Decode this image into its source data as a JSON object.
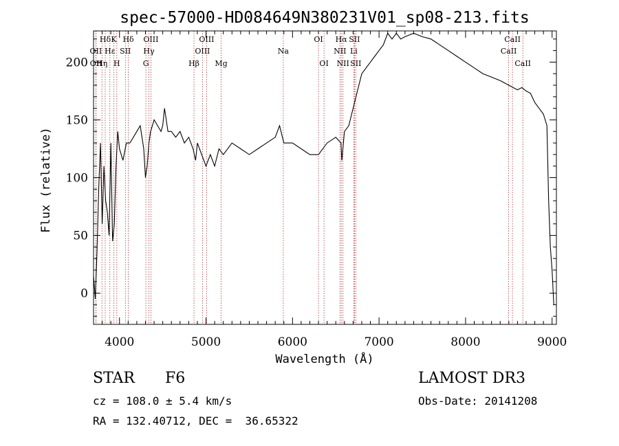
{
  "chart_data": {
    "type": "line",
    "title": "spec-57000-HD084649N380231V01_sp08-213.fits",
    "xlabel": "Wavelength (Å)",
    "ylabel": "Flux (relative)",
    "xlim": [
      3700,
      9050
    ],
    "ylim": [
      -27,
      227
    ],
    "xticks": [
      4000,
      5000,
      6000,
      7000,
      8000,
      9000
    ],
    "yticks": [
      0,
      50,
      100,
      150,
      200
    ],
    "series": [
      {
        "name": "flux",
        "x": [
          3700,
          3720,
          3740,
          3760,
          3780,
          3800,
          3820,
          3840,
          3860,
          3880,
          3900,
          3920,
          3940,
          3960,
          3980,
          4000,
          4040,
          4080,
          4120,
          4160,
          4200,
          4240,
          4280,
          4300,
          4320,
          4340,
          4360,
          4400,
          4440,
          4480,
          4500,
          4520,
          4560,
          4600,
          4650,
          4700,
          4750,
          4800,
          4850,
          4880,
          4900,
          4950,
          5000,
          5050,
          5100,
          5150,
          5200,
          5300,
          5400,
          5500,
          5600,
          5700,
          5800,
          5850,
          5900,
          6000,
          6100,
          6200,
          6300,
          6400,
          6500,
          6560,
          6570,
          6600,
          6650,
          6700,
          6750,
          6800,
          6850,
          6900,
          6950,
          7000,
          7050,
          7100,
          7150,
          7200,
          7250,
          7300,
          7400,
          7500,
          7600,
          7700,
          7800,
          7900,
          8000,
          8100,
          8200,
          8300,
          8400,
          8500,
          8550,
          8600,
          8650,
          8700,
          8750,
          8800,
          8850,
          8900,
          8920,
          8940,
          8960,
          8980,
          9000,
          9020
        ],
        "y": [
          15,
          -5,
          35,
          90,
          130,
          60,
          110,
          80,
          70,
          50,
          130,
          45,
          60,
          110,
          140,
          125,
          115,
          130,
          130,
          135,
          140,
          145,
          125,
          100,
          110,
          130,
          140,
          150,
          145,
          140,
          145,
          160,
          140,
          140,
          135,
          140,
          130,
          135,
          125,
          115,
          130,
          120,
          110,
          120,
          110,
          125,
          120,
          130,
          125,
          120,
          125,
          130,
          135,
          145,
          130,
          130,
          125,
          120,
          120,
          130,
          135,
          130,
          115,
          140,
          145,
          160,
          175,
          190,
          195,
          200,
          205,
          210,
          215,
          225,
          220,
          225,
          220,
          222,
          225,
          222,
          220,
          215,
          210,
          205,
          200,
          195,
          190,
          187,
          184,
          180,
          178,
          176,
          178,
          175,
          173,
          165,
          160,
          155,
          150,
          145,
          80,
          40,
          20,
          -10
        ]
      }
    ],
    "lines": [
      {
        "name": "Hδ",
        "x": 3835,
        "row": 1
      },
      {
        "name": "OII",
        "x": 3727,
        "row": 2
      },
      {
        "name": "OII",
        "x": 3729,
        "row": 3
      },
      {
        "name": "Hε",
        "x": 3889,
        "row": 2
      },
      {
        "name": "Hη",
        "x": 3797,
        "row": 3
      },
      {
        "name": "K",
        "x": 3934,
        "row": 1
      },
      {
        "name": "H",
        "x": 3969,
        "row": 3
      },
      {
        "name": "SII",
        "x": 4068,
        "row": 2
      },
      {
        "name": "Hδ",
        "x": 4102,
        "row": 1
      },
      {
        "name": "OIII",
        "x": 4363,
        "row": 1
      },
      {
        "name": "Hγ",
        "x": 4340,
        "row": 2
      },
      {
        "name": "G",
        "x": 4305,
        "row": 3
      },
      {
        "name": "Hβ",
        "x": 4861,
        "row": 3
      },
      {
        "name": "OIII",
        "x": 4959,
        "row": 2
      },
      {
        "name": "OIII",
        "x": 5007,
        "row": 1
      },
      {
        "name": "Mg",
        "x": 5175,
        "row": 3
      },
      {
        "name": "Na",
        "x": 5893,
        "row": 2
      },
      {
        "name": "OI",
        "x": 6300,
        "row": 1
      },
      {
        "name": "OI",
        "x": 6364,
        "row": 3
      },
      {
        "name": "Hα",
        "x": 6563,
        "row": 1
      },
      {
        "name": "NII",
        "x": 6548,
        "row": 2
      },
      {
        "name": "NII",
        "x": 6583,
        "row": 3
      },
      {
        "name": "SII",
        "x": 6716,
        "row": 1
      },
      {
        "name": "Li",
        "x": 6708,
        "row": 2
      },
      {
        "name": "SII",
        "x": 6731,
        "row": 3
      },
      {
        "name": "CaII",
        "x": 8542,
        "row": 1
      },
      {
        "name": "CaII",
        "x": 8498,
        "row": 2
      },
      {
        "name": "CaII",
        "x": 8662,
        "row": 3
      }
    ],
    "grid": false,
    "colors": {
      "spectrum": "#000000",
      "line_marker": "#b03030"
    }
  },
  "info": {
    "class": "STAR",
    "subclass": "F6",
    "survey": "LAMOST DR3",
    "cz": "cz = 108.0 ± 5.4 km/s",
    "obs_date": "Obs-Date: 20141208",
    "radec": "RA = 132.40712, DEC =  36.65322"
  }
}
